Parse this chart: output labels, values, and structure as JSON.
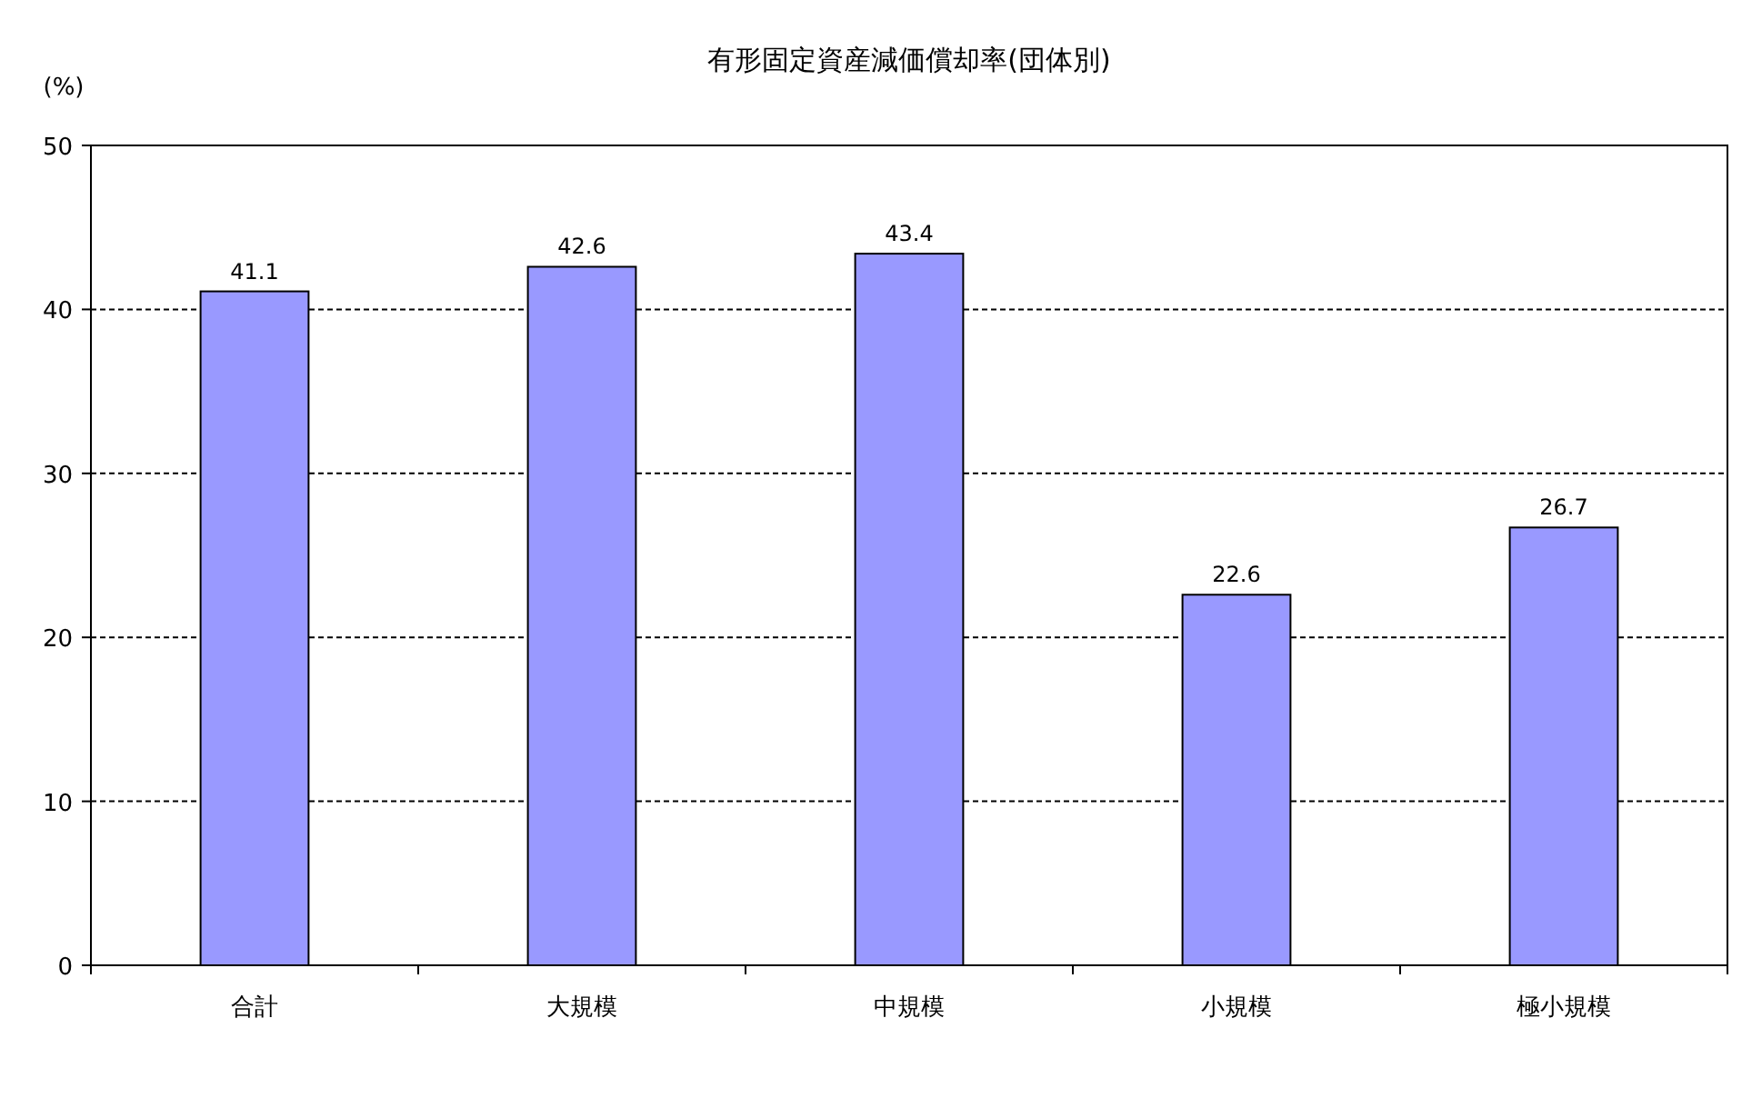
{
  "chart_data": {
    "type": "bar",
    "title": "有形固定資産減価償却率(団体別)",
    "ylabel": "(%)",
    "categories": [
      "合計",
      "大規模",
      "中規模",
      "小規模",
      "極小規模"
    ],
    "values": [
      41.1,
      42.6,
      43.4,
      22.6,
      26.7
    ],
    "color": "#9999ff",
    "ylim": [
      0,
      50
    ],
    "yticks": [
      0,
      10,
      20,
      30,
      40,
      50
    ],
    "grid": "y",
    "data_labels": true
  }
}
